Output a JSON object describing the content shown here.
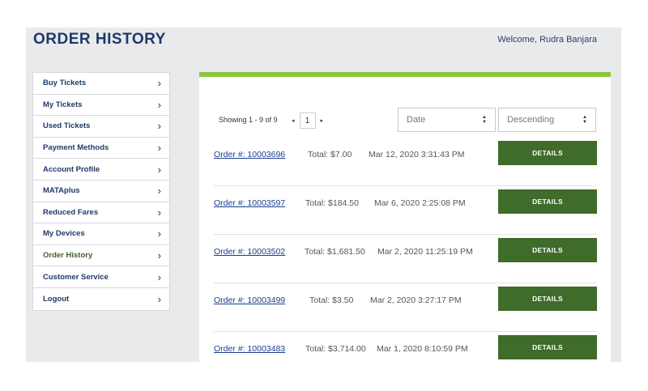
{
  "header": {
    "title": "ORDER HISTORY",
    "welcome": "Welcome, Rudra Banjara"
  },
  "sidebar": {
    "items": [
      {
        "label": "Buy Tickets"
      },
      {
        "label": "My Tickets"
      },
      {
        "label": "Used Tickets"
      },
      {
        "label": "Payment Methods"
      },
      {
        "label": "Account Profile"
      },
      {
        "label": "MATAplus"
      },
      {
        "label": "Reduced Fares"
      },
      {
        "label": "My Devices"
      },
      {
        "label": "Order History",
        "active": true
      },
      {
        "label": "Customer Service"
      },
      {
        "label": "Logout"
      }
    ],
    "chevron": "›"
  },
  "toolbar": {
    "showing": "Showing 1 - 9 of 9",
    "page": "1",
    "prev": "◂",
    "next": "▸",
    "sort_field": "Date",
    "sort_order": "Descending"
  },
  "orders": [
    {
      "order": "Order #: 10003696",
      "total": "Total: $7.00",
      "date": "Mar 12, 2020 3:31:43 PM",
      "button": "DETAILS"
    },
    {
      "order": "Order #: 10003597",
      "total": "Total: $184.50",
      "date": "Mar 6, 2020 2:25:08 PM",
      "button": "DETAILS"
    },
    {
      "order": "Order #: 10003502",
      "total": "Total: $1,681.50",
      "date": "Mar 2, 2020 11:25:19 PM",
      "button": "DETAILS"
    },
    {
      "order": "Order #: 10003499",
      "total": "Total: $3.50",
      "date": "Mar 2, 2020 3:27:17 PM",
      "button": "DETAILS"
    },
    {
      "order": "Order #: 10003483",
      "total": "Total: $3,714.00",
      "date": "Mar 1, 2020 8:10:59 PM",
      "button": "DETAILS"
    }
  ],
  "colors": {
    "accent": "#8dc63f",
    "button": "#3f6b2b",
    "title": "#1f3a68"
  }
}
